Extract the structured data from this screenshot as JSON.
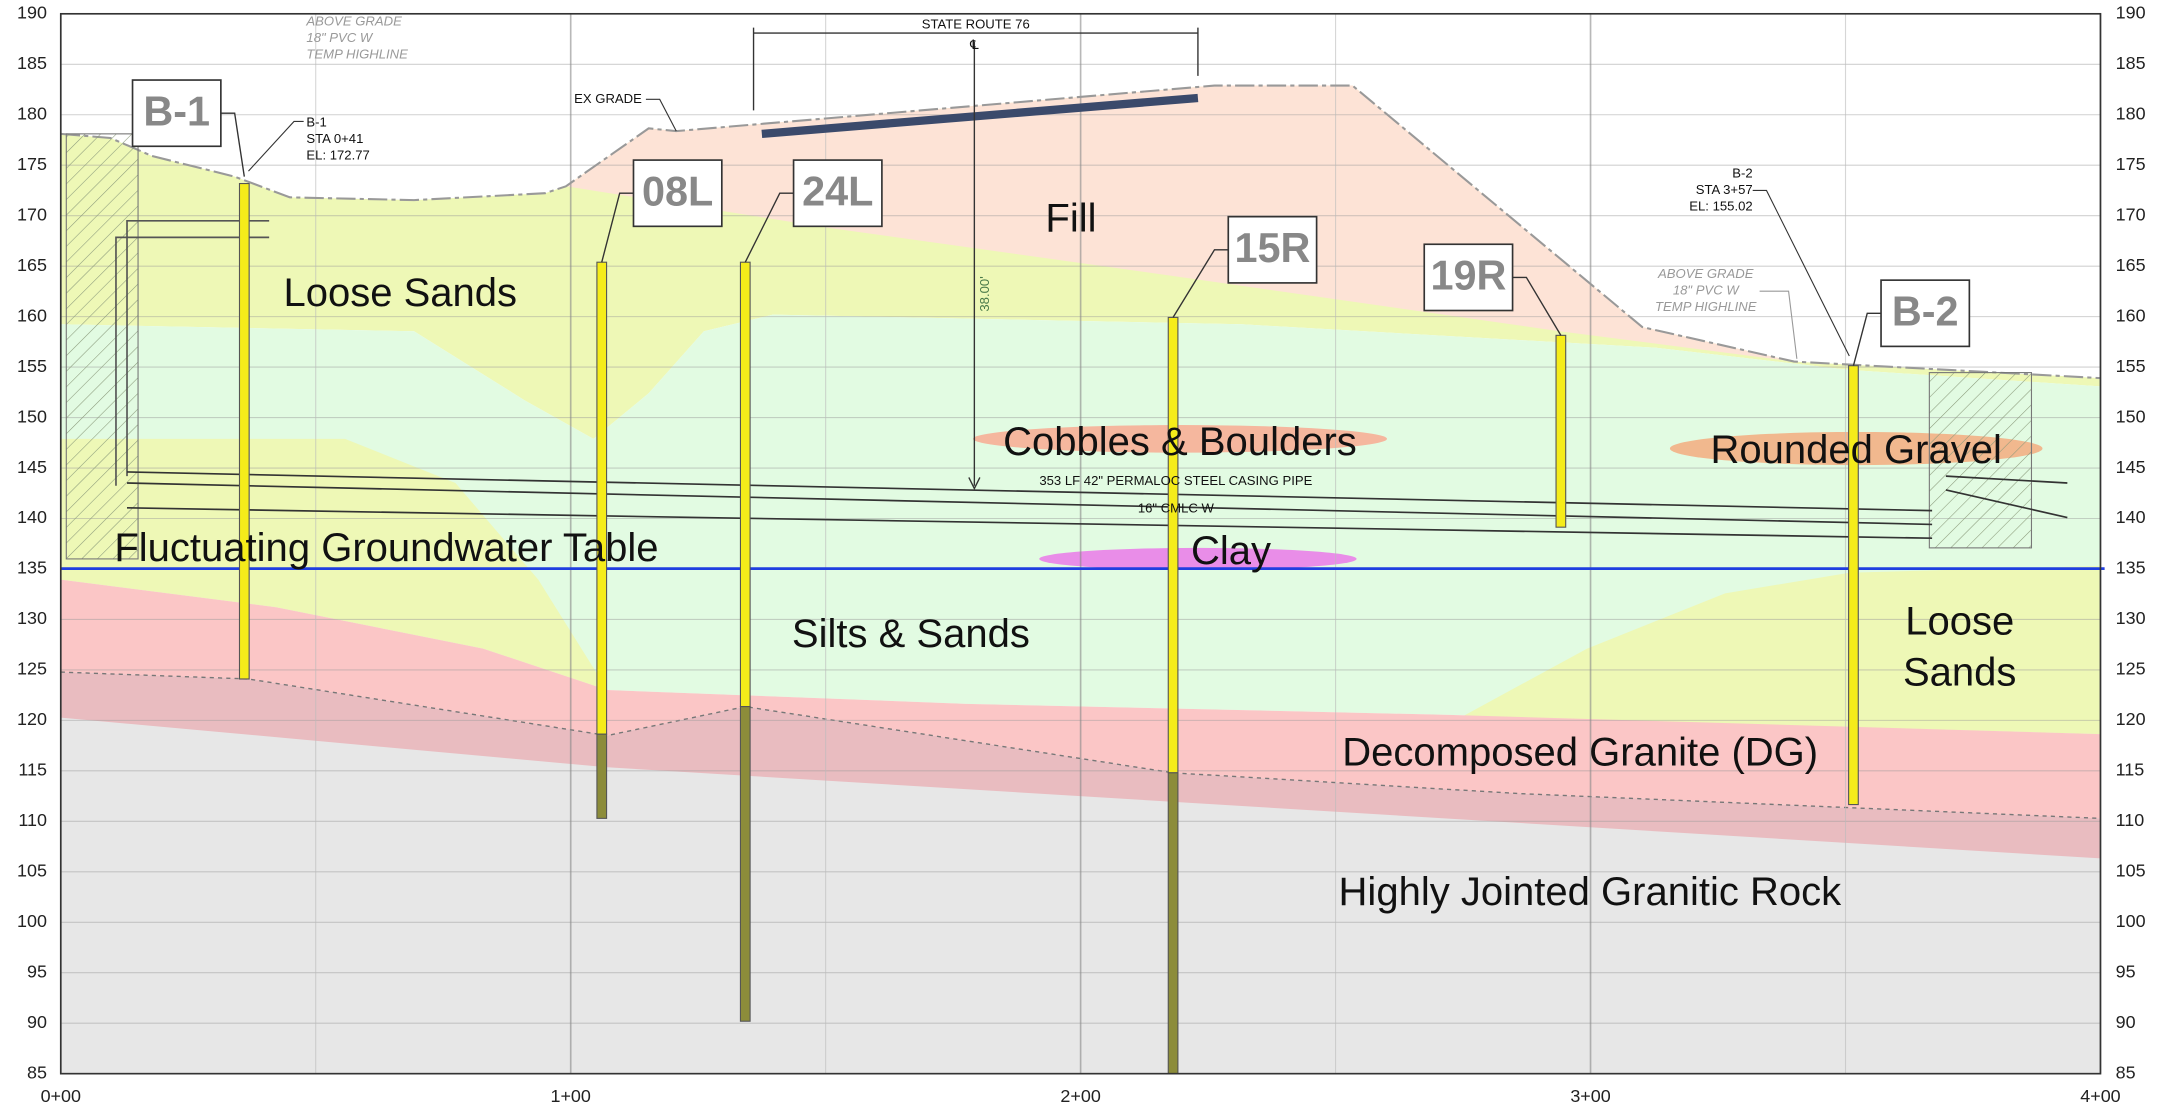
{
  "axes": {
    "elevations": [
      "190",
      "185",
      "180",
      "175",
      "170",
      "165",
      "160",
      "155",
      "150",
      "145",
      "140",
      "135",
      "130",
      "125",
      "120",
      "115",
      "110",
      "105",
      "100",
      "95",
      "90",
      "85"
    ],
    "stations": [
      "0+00",
      "1+00",
      "2+00",
      "3+00",
      "4+00"
    ]
  },
  "layers": {
    "fill": "Fill",
    "loose_sands_upper": "Loose Sands",
    "cobbles": "Cobbles & Boulders",
    "gravel": "Rounded Gravel",
    "clay": "Clay",
    "groundwater": "Fluctuating Groundwater Table",
    "silts": "Silts & Sands",
    "loose_sands_lower": [
      "Loose",
      "Sands"
    ],
    "dg": "Decomposed Granite (DG)",
    "rock": "Highly Jointed Granitic Rock"
  },
  "borings": [
    "B-1",
    "08L",
    "24L",
    "15R",
    "19R",
    "B-2"
  ],
  "annotations": {
    "highline_left": [
      "ABOVE GRADE",
      "18\" PVC W",
      "TEMP HIGHLINE"
    ],
    "b1_info": [
      "B-1",
      "STA 0+41",
      "EL: 172.77"
    ],
    "ex_grade": "EX GRADE",
    "state_route": "STATE ROUTE 76",
    "centerline": "℄",
    "depth": "38.00'",
    "casing": "353 LF 42\" PERMALOC STEEL CASING PIPE",
    "water_line": "16\" CMLC W",
    "b2_info": [
      "B-2",
      "STA 3+57",
      "EL: 155.02"
    ],
    "highline_right": [
      "ABOVE GRADE",
      "18\" PVC W",
      "TEMP HIGHLINE"
    ]
  }
}
